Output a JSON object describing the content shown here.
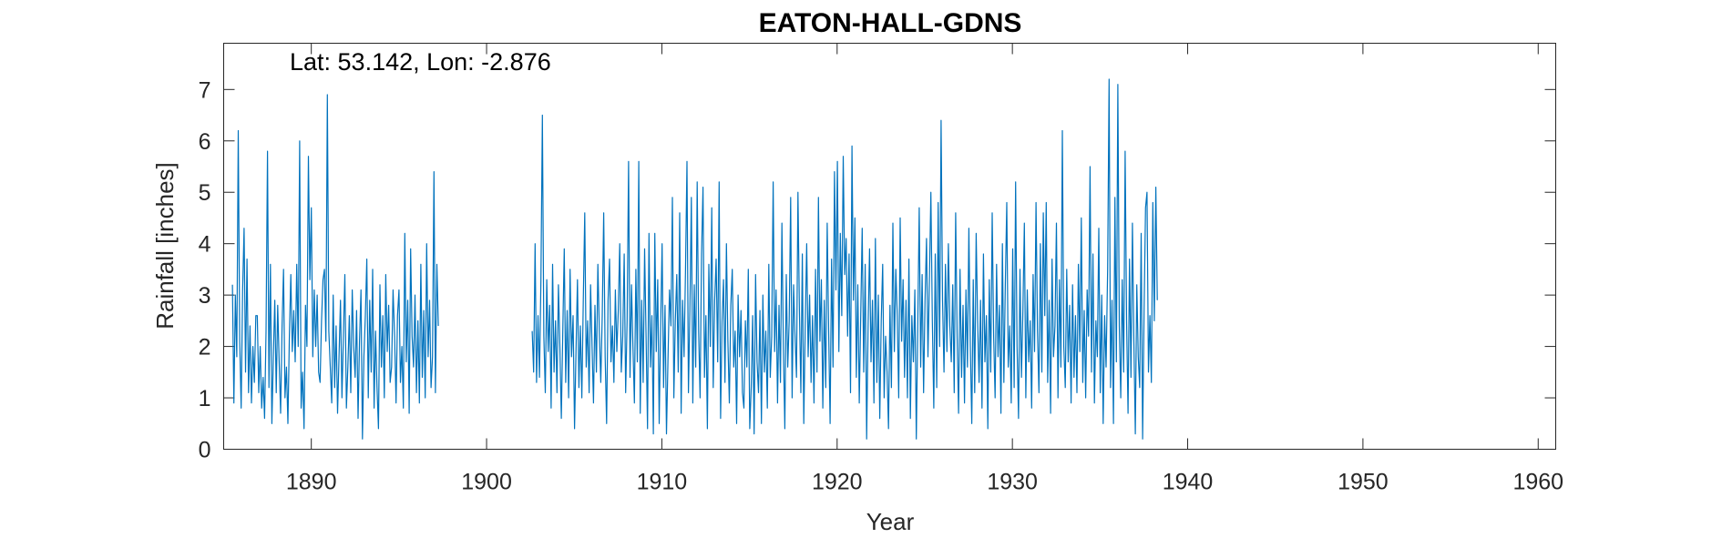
{
  "chart_data": {
    "type": "line",
    "title": "EATON-HALL-GDNS",
    "xlabel": "Year",
    "ylabel": "Rainfall [inches]",
    "annotation": "Lat: 53.142, Lon: -2.876",
    "xlim": [
      1885,
      1961
    ],
    "ylim": [
      0,
      7.9
    ],
    "xticks": [
      1890,
      1900,
      1910,
      1920,
      1930,
      1940,
      1950,
      1960
    ],
    "yticks": [
      0,
      1,
      2,
      3,
      4,
      5,
      6,
      7
    ],
    "grid": false,
    "legend": "none",
    "series": [
      {
        "color": "#0072BD",
        "segments": [
          {
            "x_start": 1885.5,
            "step_years": 0.08333,
            "values": [
              3.2,
              0.9,
              3.0,
              1.8,
              6.2,
              2.1,
              0.8,
              3.1,
              4.3,
              1.5,
              3.7,
              1.1,
              2.4,
              0.9,
              2.0,
              1.3,
              2.6,
              2.6,
              1.1,
              2.0,
              0.8,
              1.4,
              0.6,
              2.3,
              5.8,
              1.2,
              3.6,
              0.5,
              1.8,
              2.9,
              1.1,
              2.8,
              1.7,
              0.7,
              2.4,
              3.5,
              1.0,
              1.6,
              0.5,
              2.2,
              3.4,
              1.9,
              2.7,
              1.7,
              3.6,
              2.0,
              6.0,
              0.8,
              1.5,
              0.4,
              2.8,
              2.0,
              5.7,
              3.3,
              4.7,
              1.8,
              3.1,
              2.0,
              3.0,
              1.5,
              1.3,
              2.5,
              3.3,
              3.5,
              2.1,
              6.9,
              2.3,
              1.6,
              0.9,
              3.0,
              1.2,
              2.4,
              0.7,
              1.8,
              2.9,
              1.0,
              2.2,
              3.4,
              0.8,
              1.6,
              2.6,
              1.1,
              3.1,
              2.0,
              1.4,
              2.7,
              0.6,
              2.1,
              3.1,
              0.2,
              1.8,
              2.6,
              3.7,
              1.0,
              2.9,
              1.5,
              3.5,
              0.8,
              2.3,
              1.2,
              0.4,
              3.2,
              1.6,
              2.6,
              1.0,
              3.4,
              1.9,
              2.8,
              1.3,
              1.6,
              3.1,
              2.2,
              0.9,
              2.6,
              3.1,
              1.3,
              2.0,
              0.8,
              4.2,
              1.7,
              2.9,
              0.7,
              3.9,
              2.2,
              1.6,
              3.0,
              1.1,
              2.5,
              0.9,
              3.6,
              1.4,
              2.7,
              1.0,
              4.0,
              1.8,
              2.9,
              1.2,
              1.8,
              5.4,
              1.1,
              3.6,
              2.4
            ]
          },
          {
            "x_start": 1902.6,
            "step_years": 0.08333,
            "values": [
              2.3,
              1.5,
              4.0,
              1.3,
              2.6,
              1.4,
              3.3,
              6.5,
              2.2,
              1.1,
              3.3,
              1.9,
              2.8,
              0.8,
              3.6,
              1.5,
              2.5,
              1.1,
              3.2,
              2.0,
              0.6,
              2.3,
              3.9,
              1.3,
              2.7,
              1.0,
              3.5,
              1.8,
              2.6,
              0.4,
              1.9,
              3.3,
              1.2,
              2.4,
              1.0,
              2.9,
              4.6,
              1.6,
              2.5,
              1.1,
              3.2,
              2.0,
              0.9,
              2.8,
              1.5,
              3.6,
              2.3,
              1.3,
              2.6,
              4.6,
              1.8,
              0.5,
              2.9,
              3.7,
              1.7,
              2.4,
              1.3,
              3.1,
              1.9,
              2.7,
              4.0,
              1.5,
              2.2,
              3.8,
              1.1,
              2.5,
              5.6,
              1.4,
              3.2,
              2.0,
              0.9,
              3.5,
              1.7,
              5.6,
              0.7,
              2.9,
              1.3,
              3.9,
              2.2,
              0.4,
              4.2,
              1.6,
              2.6,
              0.3,
              4.2,
              1.9,
              3.3,
              0.5,
              2.4,
              4.0,
              1.2,
              2.8,
              0.3,
              1.7,
              3.1,
              2.4,
              4.9,
              1.0,
              2.5,
              3.4,
              1.5,
              4.6,
              0.7,
              2.9,
              1.8,
              3.5,
              5.6,
              1.1,
              2.7,
              4.9,
              0.9,
              3.2,
              1.6,
              5.2,
              2.3,
              1.0,
              3.8,
              5.1,
              1.4,
              2.6,
              0.4,
              3.6,
              2.0,
              4.7,
              1.2,
              2.9,
              3.7,
              1.7,
              5.2,
              0.6,
              2.5,
              3.3,
              1.3,
              4.0,
              2.1,
              0.9,
              2.8,
              3.5,
              1.6,
              2.3,
              0.5,
              3.0,
              1.8,
              2.7,
              1.1,
              0.8,
              2.5,
              1.6,
              3.5,
              0.4,
              1.2,
              2.6,
              0.3,
              3.4,
              1.7,
              1.1,
              2.7,
              0.5,
              3.0,
              1.5,
              2.3,
              0.8,
              3.6,
              1.4,
              2.2,
              5.2,
              1.9,
              3.1,
              0.9,
              2.8,
              1.3,
              4.4,
              2.0,
              0.4,
              3.4,
              1.6,
              2.5,
              4.9,
              1.0,
              3.2,
              2.2,
              1.4,
              5.0,
              2.7,
              1.1,
              3.8,
              0.5,
              2.4,
              4.0,
              1.8,
              3.0,
              1.3,
              2.6,
              0.9,
              3.5,
              1.5,
              4.9,
              2.1,
              3.3,
              0.8,
              2.9,
              1.2,
              4.4,
              2.3,
              0.5,
              3.7,
              1.6,
              5.4,
              3.1,
              5.6,
              1.9,
              4.2,
              2.6,
              5.7,
              3.4,
              4.1,
              2.2,
              3.8,
              1.1,
              5.9,
              2.9,
              4.5,
              1.4,
              3.2,
              0.9,
              2.6,
              4.3,
              1.5,
              3.6,
              0.2,
              2.4,
              3.9,
              1.7,
              2.9,
              0.9,
              4.1,
              1.3,
              3.0,
              0.6,
              2.5,
              3.6,
              1.0,
              2.2,
              1.5,
              0.4,
              2.8,
              1.2,
              4.4,
              1.9,
              3.5,
              2.6,
              1.0,
              4.5,
              2.1,
              3.3,
              1.4,
              2.9,
              1.0,
              3.7,
              0.6,
              2.6,
              1.7,
              3.1,
              0.2,
              2.4,
              4.7,
              1.6,
              3.4,
              1.1,
              2.9,
              4.1,
              1.8,
              3.3,
              5.0,
              2.5,
              0.8,
              3.8,
              1.2,
              4.8,
              2.0,
              6.4,
              2.9,
              1.5,
              3.6,
              1.9,
              4.0,
              2.4,
              1.7,
              3.2,
              1.1,
              4.6,
              2.2,
              0.7,
              3.5,
              1.4,
              2.8,
              0.9,
              3.1,
              1.6,
              4.3,
              2.0,
              0.5,
              3.3,
              1.1,
              4.2,
              2.5,
              1.3,
              2.9,
              0.8,
              3.8,
              1.7,
              2.6,
              0.4,
              3.3,
              1.5,
              4.6,
              2.2,
              1.0,
              3.6,
              1.8,
              2.8,
              0.7,
              4.0,
              1.3,
              3.2,
              4.8,
              1.6,
              2.4,
              0.9,
              3.9,
              1.2,
              5.2,
              2.0,
              0.6,
              3.5,
              1.4,
              2.7,
              4.4,
              1.0,
              3.1,
              1.7,
              2.5,
              0.8,
              3.4,
              1.9,
              4.8,
              2.3,
              1.1,
              4.0,
              1.5,
              4.6,
              2.6,
              4.8,
              1.3,
              2.9,
              0.7,
              3.7,
              1.8,
              2.4,
              4.4,
              1.0,
              3.3,
              1.6,
              6.2,
              2.0,
              1.2,
              3.5,
              1.7,
              2.8,
              0.9,
              3.2,
              1.4,
              2.6,
              1.1,
              3.6,
              1.9,
              4.5,
              1.3,
              2.7,
              1.0,
              3.1,
              2.2,
              5.5,
              1.5,
              3.8,
              0.9,
              2.5,
              1.8,
              4.3,
              1.1,
              3.0,
              0.5,
              2.6,
              1.6,
              3.5,
              7.2,
              1.2,
              2.9,
              0.5,
              4.9,
              1.7,
              7.1,
              2.4,
              1.0,
              3.3,
              1.5,
              5.8,
              2.5,
              0.7,
              3.7,
              1.4,
              4.4,
              2.1,
              0.3,
              3.2,
              1.8,
              1.2,
              4.2,
              0.2,
              2.7,
              4.7,
              5.0,
              1.5,
              2.6,
              1.3,
              4.8,
              2.5,
              5.1,
              2.9
            ]
          }
        ]
      }
    ]
  }
}
